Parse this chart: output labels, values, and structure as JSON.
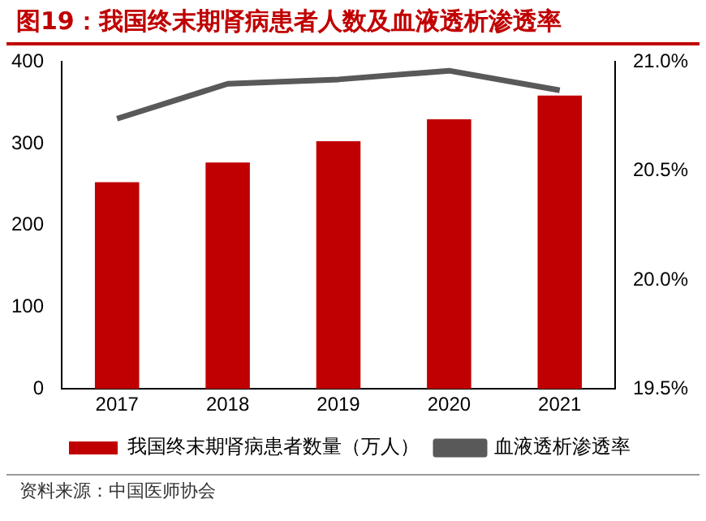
{
  "chart_data": {
    "type": "bar",
    "title": "图19：我国终末期肾病患者人数及血液透析渗透率",
    "categories": [
      "2017",
      "2018",
      "2019",
      "2020",
      "2021"
    ],
    "series": [
      {
        "name": "我国终末期肾病患者数量（万人）",
        "color": "#c00000",
        "values": [
          253,
          277,
          303,
          330,
          359
        ]
      },
      {
        "name": "血液透析渗透率",
        "type": "line",
        "axis": "y2",
        "color": "#595959",
        "values": [
          20.74,
          20.9,
          20.92,
          20.96,
          20.87
        ]
      }
    ],
    "ylim": [
      0,
      400
    ],
    "yticks": [
      0,
      100,
      200,
      300,
      400
    ],
    "y2lim": [
      19.5,
      21.0
    ],
    "y2ticks": [
      {
        "value": 19.5,
        "label": "19.5%"
      },
      {
        "value": 20.0,
        "label": "20.0%"
      },
      {
        "value": 20.5,
        "label": "20.5%"
      },
      {
        "value": 21.0,
        "label": "21.0%"
      }
    ],
    "grid": false,
    "legend": "bottom",
    "marker": "none",
    "annotations": [
      "资料来源：中国医师协会"
    ]
  }
}
